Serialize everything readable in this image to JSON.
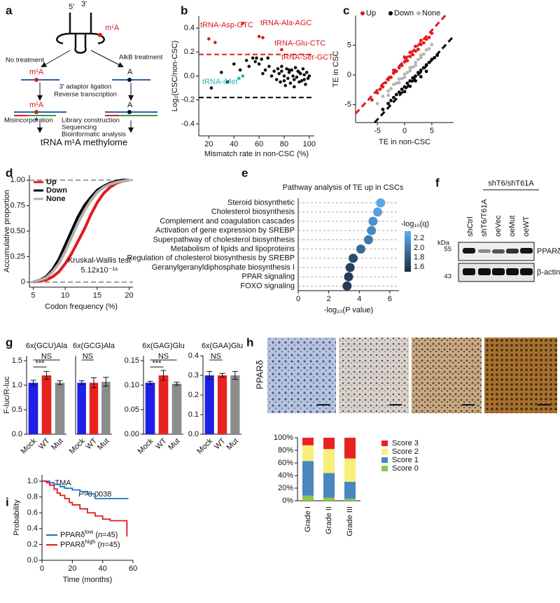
{
  "panel_labels": [
    "a",
    "b",
    "c",
    "d",
    "e",
    "f",
    "g",
    "h",
    "i"
  ],
  "diagram": {
    "five_prime": "5'",
    "three_prime": "3'",
    "m1a_top": "m¹A",
    "left_branch": "No treatment",
    "right_branch": "AlkB treatment",
    "left_mod": "m¹A",
    "right_mod": "A",
    "step1": [
      "3' adaptor ligation",
      "Reverse transcription"
    ],
    "left_mod2": "m¹A",
    "right_mod2": "A",
    "misincorporation": "Misincorporation",
    "step2": [
      "Library construction",
      "Sequencing",
      "Bioinformatic analysis"
    ],
    "result": "tRNA m¹A methylome"
  },
  "blot": {
    "group": "shT6/shT61A",
    "lanes": [
      "shCtrl",
      "shT6/T61A",
      "oeVec",
      "oeMut",
      "oeWT"
    ],
    "kda": "kDa",
    "markers": [
      "55",
      "43"
    ],
    "proteins": [
      "PPARδ",
      "β-actin"
    ]
  },
  "ihc": {
    "label": "PPARδ"
  },
  "chart_data": [
    {
      "type": "scatter",
      "ylabel": "Log₂(CSC/non-CSC)",
      "xlabel": "Mismatch rate in non-CSC (%)",
      "xlim": [
        12,
        104
      ],
      "ylim": [
        -0.5,
        0.5
      ],
      "xticks": [
        20,
        40,
        60,
        80,
        100
      ],
      "yticks": [
        -0.4,
        -0.2,
        {
          "value": 0,
          "label": "0.0"
        },
        0.2,
        0.4
      ],
      "hlines": [
        {
          "value": 0.18,
          "color": "#e3191c"
        },
        {
          "value": -0.18,
          "color": "#000000"
        }
      ],
      "series": [
        {
          "color": "#d7191c",
          "x": [
            20,
            25,
            47,
            60,
            63,
            78
          ],
          "values": [
            0.31,
            0.28,
            0.44,
            0.33,
            0.32,
            0.22
          ]
        },
        {
          "color": "#26b5b5",
          "x": [
            44,
            47
          ],
          "values": [
            -0.02,
            0.0
          ]
        },
        {
          "color": "#111111",
          "x": [
            22,
            30,
            35,
            40,
            45,
            50,
            52,
            55,
            57,
            58,
            60,
            62,
            63,
            65,
            67,
            68,
            70,
            72,
            74,
            75,
            76,
            77,
            78,
            80,
            81,
            82,
            83,
            84,
            85,
            86,
            87,
            88,
            89,
            90,
            91,
            92,
            93,
            94,
            95,
            96,
            97,
            98,
            99,
            100,
            78,
            80,
            84,
            88,
            92,
            96
          ],
          "values": [
            -0.1,
            0.03,
            -0.05,
            0.1,
            0.05,
            0.13,
            0.08,
            0.15,
            0.12,
            0.15,
            0.1,
            0.14,
            0.02,
            0.05,
            0.15,
            0.08,
            0.0,
            0.04,
            -0.03,
            0.06,
            0.02,
            -0.05,
            0.04,
            0.0,
            -0.08,
            0.06,
            -0.02,
            0.03,
            -0.06,
            0.05,
            0.0,
            -0.03,
            0.07,
            -0.01,
            0.04,
            -0.05,
            0.02,
            -0.04,
            0.06,
            0.01,
            -0.07,
            0.03,
            -0.02,
            0.0,
            0.08,
            -0.04,
            0.05,
            -0.09,
            0.03,
            -0.03
          ]
        }
      ],
      "annotations": [
        {
          "text": "tRNA-Asp-GTC",
          "color": "#d7191c"
        },
        {
          "text": "tRNA-Ala-AGC",
          "color": "#d7191c"
        },
        {
          "text": "tRNA-Glu-CTC",
          "color": "#d7191c"
        },
        {
          "text": "tRNA-Ser-GCT",
          "color": "#d7191c"
        },
        {
          "text": "tRNA-iMet",
          "color": "#26b5b5"
        }
      ]
    },
    {
      "type": "scatter",
      "ylabel": "TE in CSC",
      "xlabel": "TE in non-CSC",
      "xlim": [
        -9,
        9
      ],
      "ylim": [
        -8,
        10
      ],
      "xticks": [
        -5,
        0,
        5
      ],
      "yticks": [
        -5,
        0,
        5
      ],
      "refs": [
        {
          "slope": 1,
          "intercept": 2.5,
          "color": "#e3191c"
        },
        {
          "slope": 1,
          "intercept": -2.5,
          "color": "#000000"
        }
      ],
      "series": [
        {
          "name": "Up",
          "color": "#e3191c",
          "x": [
            -6,
            -5,
            -4.5,
            -4,
            -3.5,
            -3,
            -2.5,
            -2,
            -1.5,
            -1,
            -0.5,
            0,
            0.5,
            1,
            1.5,
            2,
            2.5,
            3,
            3.5,
            4,
            4.5,
            5,
            -2,
            0,
            1,
            2,
            3
          ],
          "values": [
            -4.2,
            -3,
            -2.4,
            -2,
            -1.3,
            -0.8,
            -0.4,
            0.3,
            0.6,
            1.2,
            1.6,
            2.2,
            2.4,
            3.1,
            3.4,
            4,
            4.3,
            5.1,
            5.4,
            6,
            6.3,
            7,
            0.8,
            3,
            3.8,
            4.8,
            5.8
          ]
        },
        {
          "name": "Down",
          "color": "#000000",
          "x": [
            -4,
            -3,
            -2.5,
            -2,
            -1.5,
            -1,
            -0.5,
            0,
            0.5,
            1,
            1.5,
            2,
            2.5,
            3,
            3.5,
            4,
            4.5,
            5,
            5.5,
            6,
            1,
            2,
            3,
            4,
            0
          ],
          "values": [
            -5.8,
            -4.8,
            -4.3,
            -3.8,
            -3.3,
            -2.9,
            -2.4,
            -2,
            -1.4,
            -1,
            -0.5,
            -0.2,
            0.4,
            0.8,
            1.2,
            1.7,
            2.1,
            2.6,
            2.9,
            3.3,
            -1.9,
            -1,
            -0.3,
            0.6,
            -2.8
          ]
        },
        {
          "name": "None",
          "color": "#b5b5b5",
          "x": [
            -5,
            -4,
            -3,
            -2.5,
            -2,
            -1.5,
            -1,
            -0.5,
            0,
            0.5,
            1,
            1.5,
            2,
            2.5,
            3,
            3.5,
            4,
            4.5,
            5,
            -3,
            -1,
            0,
            1,
            2,
            3
          ],
          "values": [
            -4.8,
            -3.6,
            -2.7,
            -2.3,
            -1.6,
            -1.4,
            -0.7,
            -0.6,
            0.1,
            0.4,
            1.2,
            1.3,
            2.1,
            2.6,
            2.9,
            3.5,
            4.2,
            4.4,
            5.1,
            -3.4,
            -1.3,
            -0.4,
            0.7,
            1.6,
            3.3
          ]
        }
      ]
    },
    {
      "type": "line",
      "ylabel": "Accumulative proportion",
      "xlabel": "Codon frequency (%)",
      "xlim": [
        4.4,
        20.6
      ],
      "ylim": [
        -0.05,
        1.05
      ],
      "xticks": [
        5,
        10,
        15,
        20
      ],
      "yticks": [
        0,
        0.25,
        {
          "value": 0.5,
          "label": "0.50"
        },
        0.75,
        {
          "value": 1,
          "label": "1.00"
        }
      ],
      "hlines": [
        {
          "value": 0,
          "color": "#9a9a9a"
        },
        {
          "value": 1,
          "color": "#9a9a9a"
        }
      ],
      "x": [
        5,
        6,
        7,
        8,
        9,
        10,
        11,
        12,
        13,
        14,
        15,
        16,
        17,
        18,
        19,
        20
      ],
      "series": [
        {
          "name": "Up",
          "color": "#e3191c",
          "values": [
            0,
            0.01,
            0.02,
            0.05,
            0.1,
            0.18,
            0.28,
            0.4,
            0.52,
            0.66,
            0.78,
            0.87,
            0.93,
            0.97,
            0.99,
            1
          ]
        },
        {
          "name": "Down",
          "color": "#000000",
          "values": [
            0,
            0.02,
            0.05,
            0.12,
            0.22,
            0.36,
            0.5,
            0.64,
            0.75,
            0.83,
            0.9,
            0.94,
            0.97,
            0.99,
            1,
            1
          ]
        },
        {
          "name": "None",
          "color": "#b0b0b0",
          "values": [
            0,
            0.02,
            0.04,
            0.1,
            0.18,
            0.3,
            0.44,
            0.58,
            0.7,
            0.8,
            0.88,
            0.93,
            0.96,
            0.98,
            0.99,
            1
          ]
        }
      ],
      "annotations": [
        {
          "text": "Kruskal-Wallis test"
        },
        {
          "text": "5.12x10⁻¹⁶"
        }
      ]
    },
    {
      "type": "dot",
      "title": "Pathway  analysis of TE up in CSCs",
      "xlabel": "-log₁₀(P value)",
      "xlim": [
        0,
        6.6
      ],
      "xticks": [
        0,
        2,
        4,
        6
      ],
      "categories": [
        "Steroid biosynthetic",
        "Cholesterol biosynthesis",
        "Complement and coagulation cascades",
        "Activation of gene expression by SREBP",
        "Superpathway of cholesterol biosynthesis",
        "Metabolism of lipids and lipoproteins",
        "Regulation of cholesterol biosynthesis by SREBP",
        "Geranylgeranyldiphosphate biosynthesis I",
        "PPAR signaling",
        "FOXO signaling"
      ],
      "values": [
        5.4,
        5.2,
        4.9,
        4.8,
        4.6,
        4.1,
        3.6,
        3.4,
        3.3,
        3.2
      ],
      "color_values": [
        2.3,
        2.25,
        2.15,
        2.1,
        2.0,
        1.9,
        1.7,
        1.65,
        1.6,
        1.6
      ],
      "colorbar": {
        "title": "-log₁₀(q)",
        "lim": [
          1.5,
          2.35
        ],
        "ticks": [
          2.2,
          {
            "value": 2.0,
            "label": "2.0"
          },
          1.8,
          1.6
        ],
        "colors": [
          "#1c2a44",
          "#5eb0f0"
        ]
      }
    },
    {
      "type": "bar",
      "title": "6x(GCU)Ala",
      "ylabel": "F-luc/R-luc",
      "categories": [
        "Mock",
        "WT",
        "Mut"
      ],
      "values": [
        1.05,
        1.2,
        1.05
      ],
      "errors": [
        0.05,
        0.08,
        0.04
      ],
      "colors": [
        "#1f1fe6",
        "#e8231f",
        "#8c8c8c"
      ],
      "ylim": [
        0,
        1.6
      ],
      "yticks": [
        {
          "value": 0,
          "label": "0.0"
        },
        0.5,
        {
          "value": 1,
          "label": "1.0"
        },
        1.5
      ],
      "annotations": [
        "NS",
        "***"
      ]
    },
    {
      "type": "bar",
      "title": "6x(GCG)Ala",
      "categories": [
        "Mock",
        "WT",
        "Mut"
      ],
      "values": [
        1.05,
        1.05,
        1.07
      ],
      "errors": [
        0.04,
        0.1,
        0.09
      ],
      "colors": [
        "#1f1fe6",
        "#e8231f",
        "#8c8c8c"
      ],
      "ylim": [
        0,
        1.6
      ],
      "annotations": [
        "NS"
      ]
    },
    {
      "type": "bar",
      "title": "6x(GAG)Glu",
      "categories": [
        "Mock",
        "WT",
        "Mut"
      ],
      "values": [
        0.105,
        0.12,
        0.103
      ],
      "errors": [
        0.003,
        0.01,
        0.003
      ],
      "colors": [
        "#1f1fe6",
        "#e8231f",
        "#8c8c8c"
      ],
      "ylim": [
        0,
        0.16
      ],
      "yticks": [
        {
          "value": 0,
          "label": "0.00"
        },
        0.05,
        {
          "value": 0.1,
          "label": "0.10"
        },
        0.15
      ],
      "annotations": [
        "NS",
        "***"
      ]
    },
    {
      "type": "bar",
      "title": "6x(GAA)Glu",
      "categories": [
        "Mock",
        "WT",
        "Mut"
      ],
      "values": [
        0.3,
        0.3,
        0.3
      ],
      "errors": [
        0.02,
        0.01,
        0.02
      ],
      "colors": [
        "#1f1fe6",
        "#e8231f",
        "#8c8c8c"
      ],
      "ylim": [
        0,
        0.4
      ],
      "yticks": [
        {
          "value": 0,
          "label": "0.0"
        },
        0.1,
        0.2,
        0.3,
        0.4
      ],
      "annotations": [
        "NS"
      ]
    },
    {
      "type": "stacked_bar",
      "categories": [
        "Grade I",
        "Grade II",
        "Grade III"
      ],
      "ylim": [
        0,
        100
      ],
      "yticks": [
        {
          "value": 0,
          "label": "0%"
        },
        {
          "value": 20,
          "label": "20%"
        },
        {
          "value": 40,
          "label": "40%"
        },
        {
          "value": 60,
          "label": "60%"
        },
        {
          "value": 80,
          "label": "80%"
        },
        {
          "value": 100,
          "label": "100%"
        }
      ],
      "series": [
        {
          "name": "Score 3",
          "color": "#e8231f",
          "values": [
            12,
            18,
            33
          ]
        },
        {
          "name": "Score 2",
          "color": "#f7ef7a",
          "values": [
            25,
            38,
            37
          ]
        },
        {
          "name": "Score 1",
          "color": "#4a86c0",
          "values": [
            55,
            39,
            27
          ]
        },
        {
          "name": "Score 0",
          "color": "#8cc84b",
          "values": [
            8,
            5,
            3
          ]
        }
      ]
    },
    {
      "type": "step",
      "title": "TMA",
      "annotation": [
        "P",
        "=0.0038"
      ],
      "ylabel": "Probability",
      "xlabel": "Time (months)",
      "xlim": [
        0,
        60
      ],
      "ylim": [
        0,
        1.08
      ],
      "xticks": [
        0,
        20,
        40,
        60
      ],
      "yticks": [
        {
          "value": 0,
          "label": "0.0"
        },
        0.2,
        0.4,
        0.6,
        0.8,
        {
          "value": 1,
          "label": "1.0"
        }
      ],
      "series": [
        {
          "name": [
            "PPARδ",
            "low",
            " (",
            "n",
            "=45)"
          ],
          "color": "#1f6fd0",
          "x": [
            0,
            5,
            8,
            12,
            15,
            20,
            25,
            30,
            35,
            57
          ],
          "values": [
            1,
            0.98,
            0.96,
            0.93,
            0.91,
            0.89,
            0.87,
            0.84,
            0.78,
            0.78
          ]
        },
        {
          "name": [
            "PPARδ",
            "high",
            " (",
            "n",
            "=45)"
          ],
          "color": "#e3191c",
          "x": [
            0,
            3,
            5,
            8,
            10,
            12,
            15,
            18,
            20,
            25,
            30,
            35,
            40,
            45,
            50,
            55,
            56
          ],
          "values": [
            1,
            0.98,
            0.95,
            0.9,
            0.85,
            0.82,
            0.78,
            0.73,
            0.7,
            0.65,
            0.6,
            0.56,
            0.52,
            0.5,
            0.5,
            0.5,
            0.3
          ]
        }
      ]
    }
  ]
}
